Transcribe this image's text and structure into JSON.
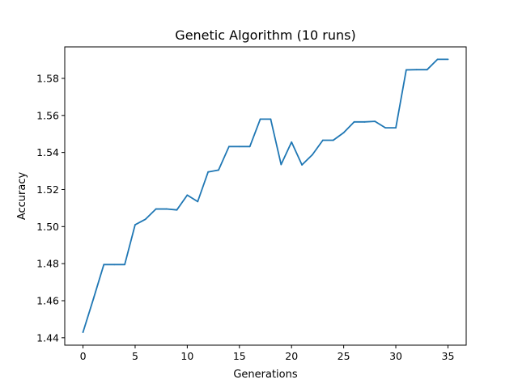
{
  "chart_data": {
    "type": "line",
    "title": "Genetic Algorithm (10 runs)",
    "xlabel": "Generations",
    "ylabel": "Accuracy",
    "xlim": [
      -1.75,
      36.75
    ],
    "ylim": [
      1.436,
      1.597
    ],
    "xticks": [
      0,
      5,
      10,
      15,
      20,
      25,
      30,
      35
    ],
    "xtick_labels": [
      "0",
      "5",
      "10",
      "15",
      "20",
      "25",
      "30",
      "35"
    ],
    "yticks": [
      1.44,
      1.46,
      1.48,
      1.5,
      1.52,
      1.54,
      1.56,
      1.58
    ],
    "ytick_labels": [
      "1.44",
      "1.46",
      "1.48",
      "1.50",
      "1.52",
      "1.54",
      "1.56",
      "1.58"
    ],
    "grid": false,
    "series": [
      {
        "color": "#1f77b4",
        "x": [
          0,
          1,
          2,
          3,
          4,
          5,
          6,
          7,
          8,
          9,
          10,
          11,
          12,
          13,
          14,
          15,
          16,
          17,
          18,
          19,
          20,
          21,
          22,
          23,
          24,
          25,
          26,
          27,
          28,
          29,
          30,
          31,
          32,
          33,
          34,
          35
        ],
        "y": [
          1.443,
          1.461,
          1.4795,
          1.4795,
          1.4795,
          1.501,
          1.504,
          1.5095,
          1.5095,
          1.509,
          1.517,
          1.5135,
          1.5295,
          1.5305,
          1.5432,
          1.5432,
          1.5432,
          1.558,
          1.558,
          1.5335,
          1.5456,
          1.5333,
          1.5388,
          1.5466,
          1.5466,
          1.5507,
          1.5565,
          1.5565,
          1.5568,
          1.5533,
          1.5533,
          1.5846,
          1.5847,
          1.5847,
          1.5903,
          1.5903
        ]
      }
    ]
  }
}
